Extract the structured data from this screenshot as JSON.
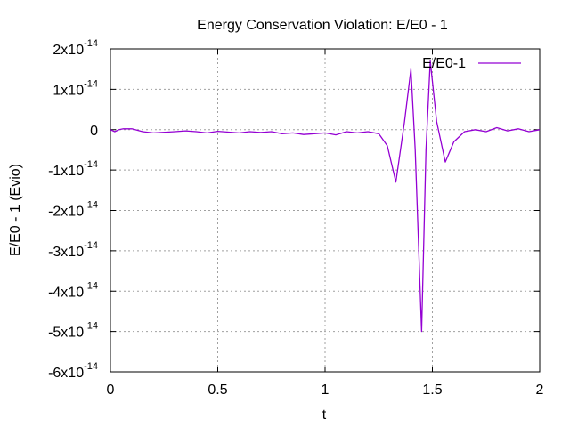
{
  "chart_data": {
    "type": "line",
    "title": "Energy Conservation Violation: E/E0 - 1",
    "xlabel": "t",
    "ylabel": "E/E0 - 1 (Evio)",
    "xlim": [
      0,
      2
    ],
    "ylim": [
      -6e-14,
      2e-14
    ],
    "grid": true,
    "legend_position": "top-right",
    "x_ticks": [
      {
        "value": 0,
        "label": "0"
      },
      {
        "value": 0.5,
        "label": "0.5"
      },
      {
        "value": 1,
        "label": "1"
      },
      {
        "value": 1.5,
        "label": "1.5"
      },
      {
        "value": 2,
        "label": "2"
      }
    ],
    "y_ticks": [
      {
        "value": 2e-14,
        "mantissa": "2x10",
        "exponent": "-14"
      },
      {
        "value": 1e-14,
        "mantissa": "1x10",
        "exponent": "-14"
      },
      {
        "value": 0,
        "mantissa": "0",
        "exponent": ""
      },
      {
        "value": -1e-14,
        "mantissa": "-1x10",
        "exponent": "-14"
      },
      {
        "value": -2e-14,
        "mantissa": "-2x10",
        "exponent": "-14"
      },
      {
        "value": -3e-14,
        "mantissa": "-3x10",
        "exponent": "-14"
      },
      {
        "value": -4e-14,
        "mantissa": "-4x10",
        "exponent": "-14"
      },
      {
        "value": -5e-14,
        "mantissa": "-5x10",
        "exponent": "-14"
      },
      {
        "value": -6e-14,
        "mantissa": "-6x10",
        "exponent": "-14"
      }
    ],
    "series": [
      {
        "name": "E/E0-1",
        "color": "#9400d3",
        "x": [
          0,
          0.02,
          0.04,
          0.06,
          0.1,
          0.15,
          0.2,
          0.3,
          0.35,
          0.4,
          0.45,
          0.5,
          0.55,
          0.6,
          0.65,
          0.7,
          0.75,
          0.8,
          0.85,
          0.9,
          0.95,
          1.0,
          1.05,
          1.1,
          1.15,
          1.2,
          1.25,
          1.29,
          1.33,
          1.37,
          1.4,
          1.42,
          1.45,
          1.47,
          1.49,
          1.52,
          1.56,
          1.6,
          1.65,
          1.7,
          1.75,
          1.8,
          1.85,
          1.9,
          1.95,
          2.0
        ],
        "y": [
          0,
          -5e-16,
          0,
          2e-16,
          2e-16,
          -5e-16,
          -8e-16,
          -5e-16,
          -3e-16,
          -5e-16,
          -8e-16,
          -4e-16,
          -6e-16,
          -8e-16,
          -5e-16,
          -7e-16,
          -5e-16,
          -1e-15,
          -8e-16,
          -1.2e-15,
          -1e-15,
          -8e-16,
          -1.3e-15,
          -5e-16,
          -8e-16,
          -5e-16,
          -1e-15,
          -4e-15,
          -1.3e-14,
          2e-15,
          1.5e-14,
          -5e-15,
          -5e-14,
          -5e-15,
          1.7e-14,
          2e-15,
          -8e-15,
          -3e-15,
          -5e-16,
          0,
          -5e-16,
          5e-16,
          -3e-16,
          2e-16,
          -5e-16,
          0
        ]
      }
    ]
  }
}
